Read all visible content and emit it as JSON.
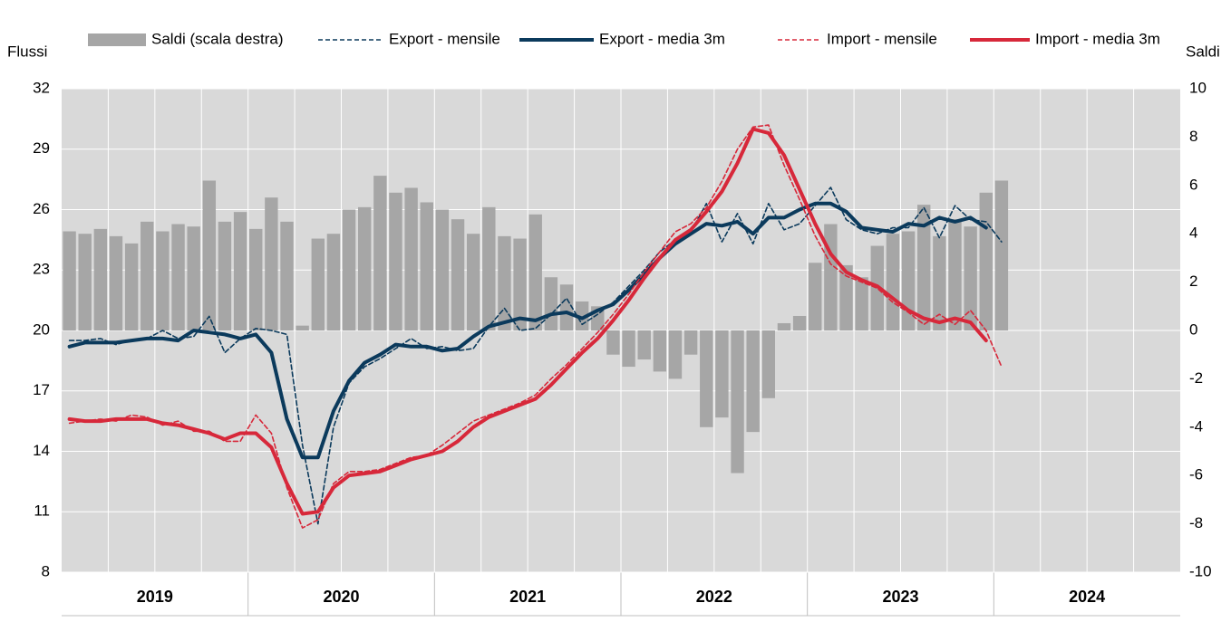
{
  "chart_data": {
    "type": "combo",
    "y_label": "Flussi",
    "y2_label": "Saldi",
    "categories": [
      "2019",
      null,
      null,
      null,
      null,
      null,
      null,
      null,
      null,
      null,
      null,
      null,
      "2020",
      null,
      null,
      null,
      null,
      null,
      null,
      null,
      null,
      null,
      null,
      null,
      "2021",
      null,
      null,
      null,
      null,
      null,
      null,
      null,
      null,
      null,
      null,
      null,
      "2022",
      null,
      null,
      null,
      null,
      null,
      null,
      null,
      null,
      null,
      null,
      null,
      "2023",
      null,
      null,
      null,
      null,
      null,
      null,
      null,
      null,
      null,
      null,
      null,
      "2024",
      null,
      null,
      null,
      null,
      null,
      null,
      null,
      null,
      null,
      null,
      null
    ],
    "ylim": [
      8,
      32
    ],
    "yticks": [
      8,
      11,
      14,
      17,
      20,
      23,
      26,
      29,
      32
    ],
    "y2lim": [
      -10,
      10
    ],
    "y2ticks": [
      -10,
      -8,
      -6,
      -4,
      -2,
      0,
      2,
      4,
      6,
      8,
      10
    ],
    "grid": true,
    "series": [
      {
        "name": "Saldi (scala destra)",
        "type": "bar",
        "axis": "y2",
        "color": "#a6a6a6",
        "values": [
          4.1,
          4.0,
          4.2,
          3.9,
          3.6,
          4.5,
          4.1,
          4.4,
          4.3,
          6.2,
          4.5,
          4.9,
          4.2,
          5.5,
          4.5,
          0.2,
          3.8,
          4.0,
          5.0,
          5.1,
          6.4,
          5.7,
          5.9,
          5.3,
          5.0,
          4.6,
          4.0,
          5.1,
          3.9,
          3.8,
          4.8,
          2.2,
          1.9,
          1.2,
          1.0,
          -1.0,
          -1.5,
          -1.2,
          -1.7,
          -2.0,
          -1.0,
          -4.0,
          -3.6,
          -5.9,
          -4.2,
          -2.8,
          0.3,
          0.6,
          2.8,
          4.4,
          2.7,
          2.2,
          3.5,
          4.0,
          4.1,
          5.2,
          3.9,
          4.6,
          4.3,
          5.7,
          6.2,
          null,
          null,
          null,
          null,
          null,
          null,
          null,
          null,
          null,
          null,
          null
        ]
      },
      {
        "name": "Export - mensile",
        "type": "line",
        "style": "dashed",
        "color": "#0b3a5c",
        "values": [
          19.5,
          19.5,
          19.6,
          19.3,
          19.5,
          19.6,
          20.0,
          19.6,
          19.7,
          20.7,
          18.9,
          19.6,
          20.1,
          20.0,
          19.8,
          14.3,
          10.4,
          15.2,
          17.4,
          18.2,
          18.6,
          19.1,
          19.6,
          19.1,
          19.2,
          19.0,
          19.1,
          20.2,
          21.1,
          20.0,
          20.1,
          20.8,
          21.6,
          20.3,
          20.8,
          21.4,
          22.2,
          23.0,
          23.9,
          24.5,
          24.9,
          26.3,
          24.4,
          25.8,
          24.3,
          26.3,
          25.0,
          25.3,
          26.2,
          27.1,
          25.5,
          25.0,
          24.8,
          25.1,
          25.1,
          26.1,
          24.6,
          26.2,
          25.5,
          25.4,
          24.4,
          null,
          null,
          null,
          null,
          null,
          null,
          null,
          null,
          null,
          null,
          null
        ]
      },
      {
        "name": "Export - media 3m",
        "type": "line",
        "style": "solid",
        "color": "#0b3a5c",
        "values": [
          19.2,
          19.4,
          19.4,
          19.4,
          19.5,
          19.6,
          19.6,
          19.5,
          20.0,
          19.9,
          19.8,
          19.6,
          19.8,
          18.9,
          15.6,
          13.7,
          13.7,
          16.0,
          17.5,
          18.4,
          18.8,
          19.3,
          19.2,
          19.2,
          19.0,
          19.1,
          19.7,
          20.2,
          20.4,
          20.6,
          20.5,
          20.8,
          20.9,
          20.6,
          21.0,
          21.3,
          22.0,
          22.8,
          23.6,
          24.3,
          24.8,
          25.3,
          25.2,
          25.4,
          24.8,
          25.6,
          25.6,
          26.0,
          26.3,
          26.3,
          25.9,
          25.1,
          25.0,
          24.9,
          25.3,
          25.2,
          25.6,
          25.4,
          25.6,
          25.1,
          null,
          null,
          null,
          null,
          null,
          null,
          null,
          null,
          null,
          null,
          null,
          null
        ]
      },
      {
        "name": "Import - mensile",
        "type": "line",
        "style": "dashed",
        "color": "#d7283a",
        "values": [
          15.4,
          15.5,
          15.6,
          15.5,
          15.8,
          15.7,
          15.3,
          15.5,
          15.0,
          15.0,
          14.5,
          14.5,
          15.8,
          14.9,
          12.2,
          10.2,
          10.6,
          12.4,
          13.0,
          13.0,
          13.1,
          13.4,
          13.7,
          13.8,
          14.3,
          14.9,
          15.5,
          15.8,
          16.1,
          16.4,
          16.8,
          17.6,
          18.3,
          19.1,
          19.9,
          20.8,
          21.8,
          22.9,
          23.9,
          24.9,
          25.3,
          26.1,
          27.4,
          29.0,
          30.1,
          30.2,
          28.2,
          26.5,
          24.7,
          23.3,
          22.7,
          22.4,
          22.1,
          21.4,
          20.9,
          20.3,
          20.8,
          20.3,
          21.0,
          20.0,
          18.2,
          null,
          null,
          null,
          null,
          null,
          null,
          null,
          null,
          null,
          null,
          null
        ]
      },
      {
        "name": "Import - media 3m",
        "type": "line",
        "style": "solid",
        "color": "#d7283a",
        "values": [
          15.6,
          15.5,
          15.5,
          15.6,
          15.6,
          15.6,
          15.4,
          15.3,
          15.1,
          14.9,
          14.6,
          14.9,
          14.9,
          14.2,
          12.4,
          10.9,
          11.0,
          12.2,
          12.8,
          12.9,
          13.0,
          13.3,
          13.6,
          13.8,
          14.0,
          14.5,
          15.2,
          15.7,
          16.0,
          16.3,
          16.6,
          17.3,
          18.1,
          18.9,
          19.6,
          20.5,
          21.5,
          22.6,
          23.6,
          24.5,
          25.0,
          25.9,
          26.9,
          28.3,
          30.0,
          29.8,
          28.7,
          27.0,
          25.3,
          23.8,
          22.9,
          22.5,
          22.2,
          21.6,
          21.0,
          20.6,
          20.4,
          20.6,
          20.4,
          19.5,
          null,
          null,
          null,
          null,
          null,
          null,
          null,
          null,
          null,
          null,
          null,
          null
        ]
      }
    ]
  }
}
